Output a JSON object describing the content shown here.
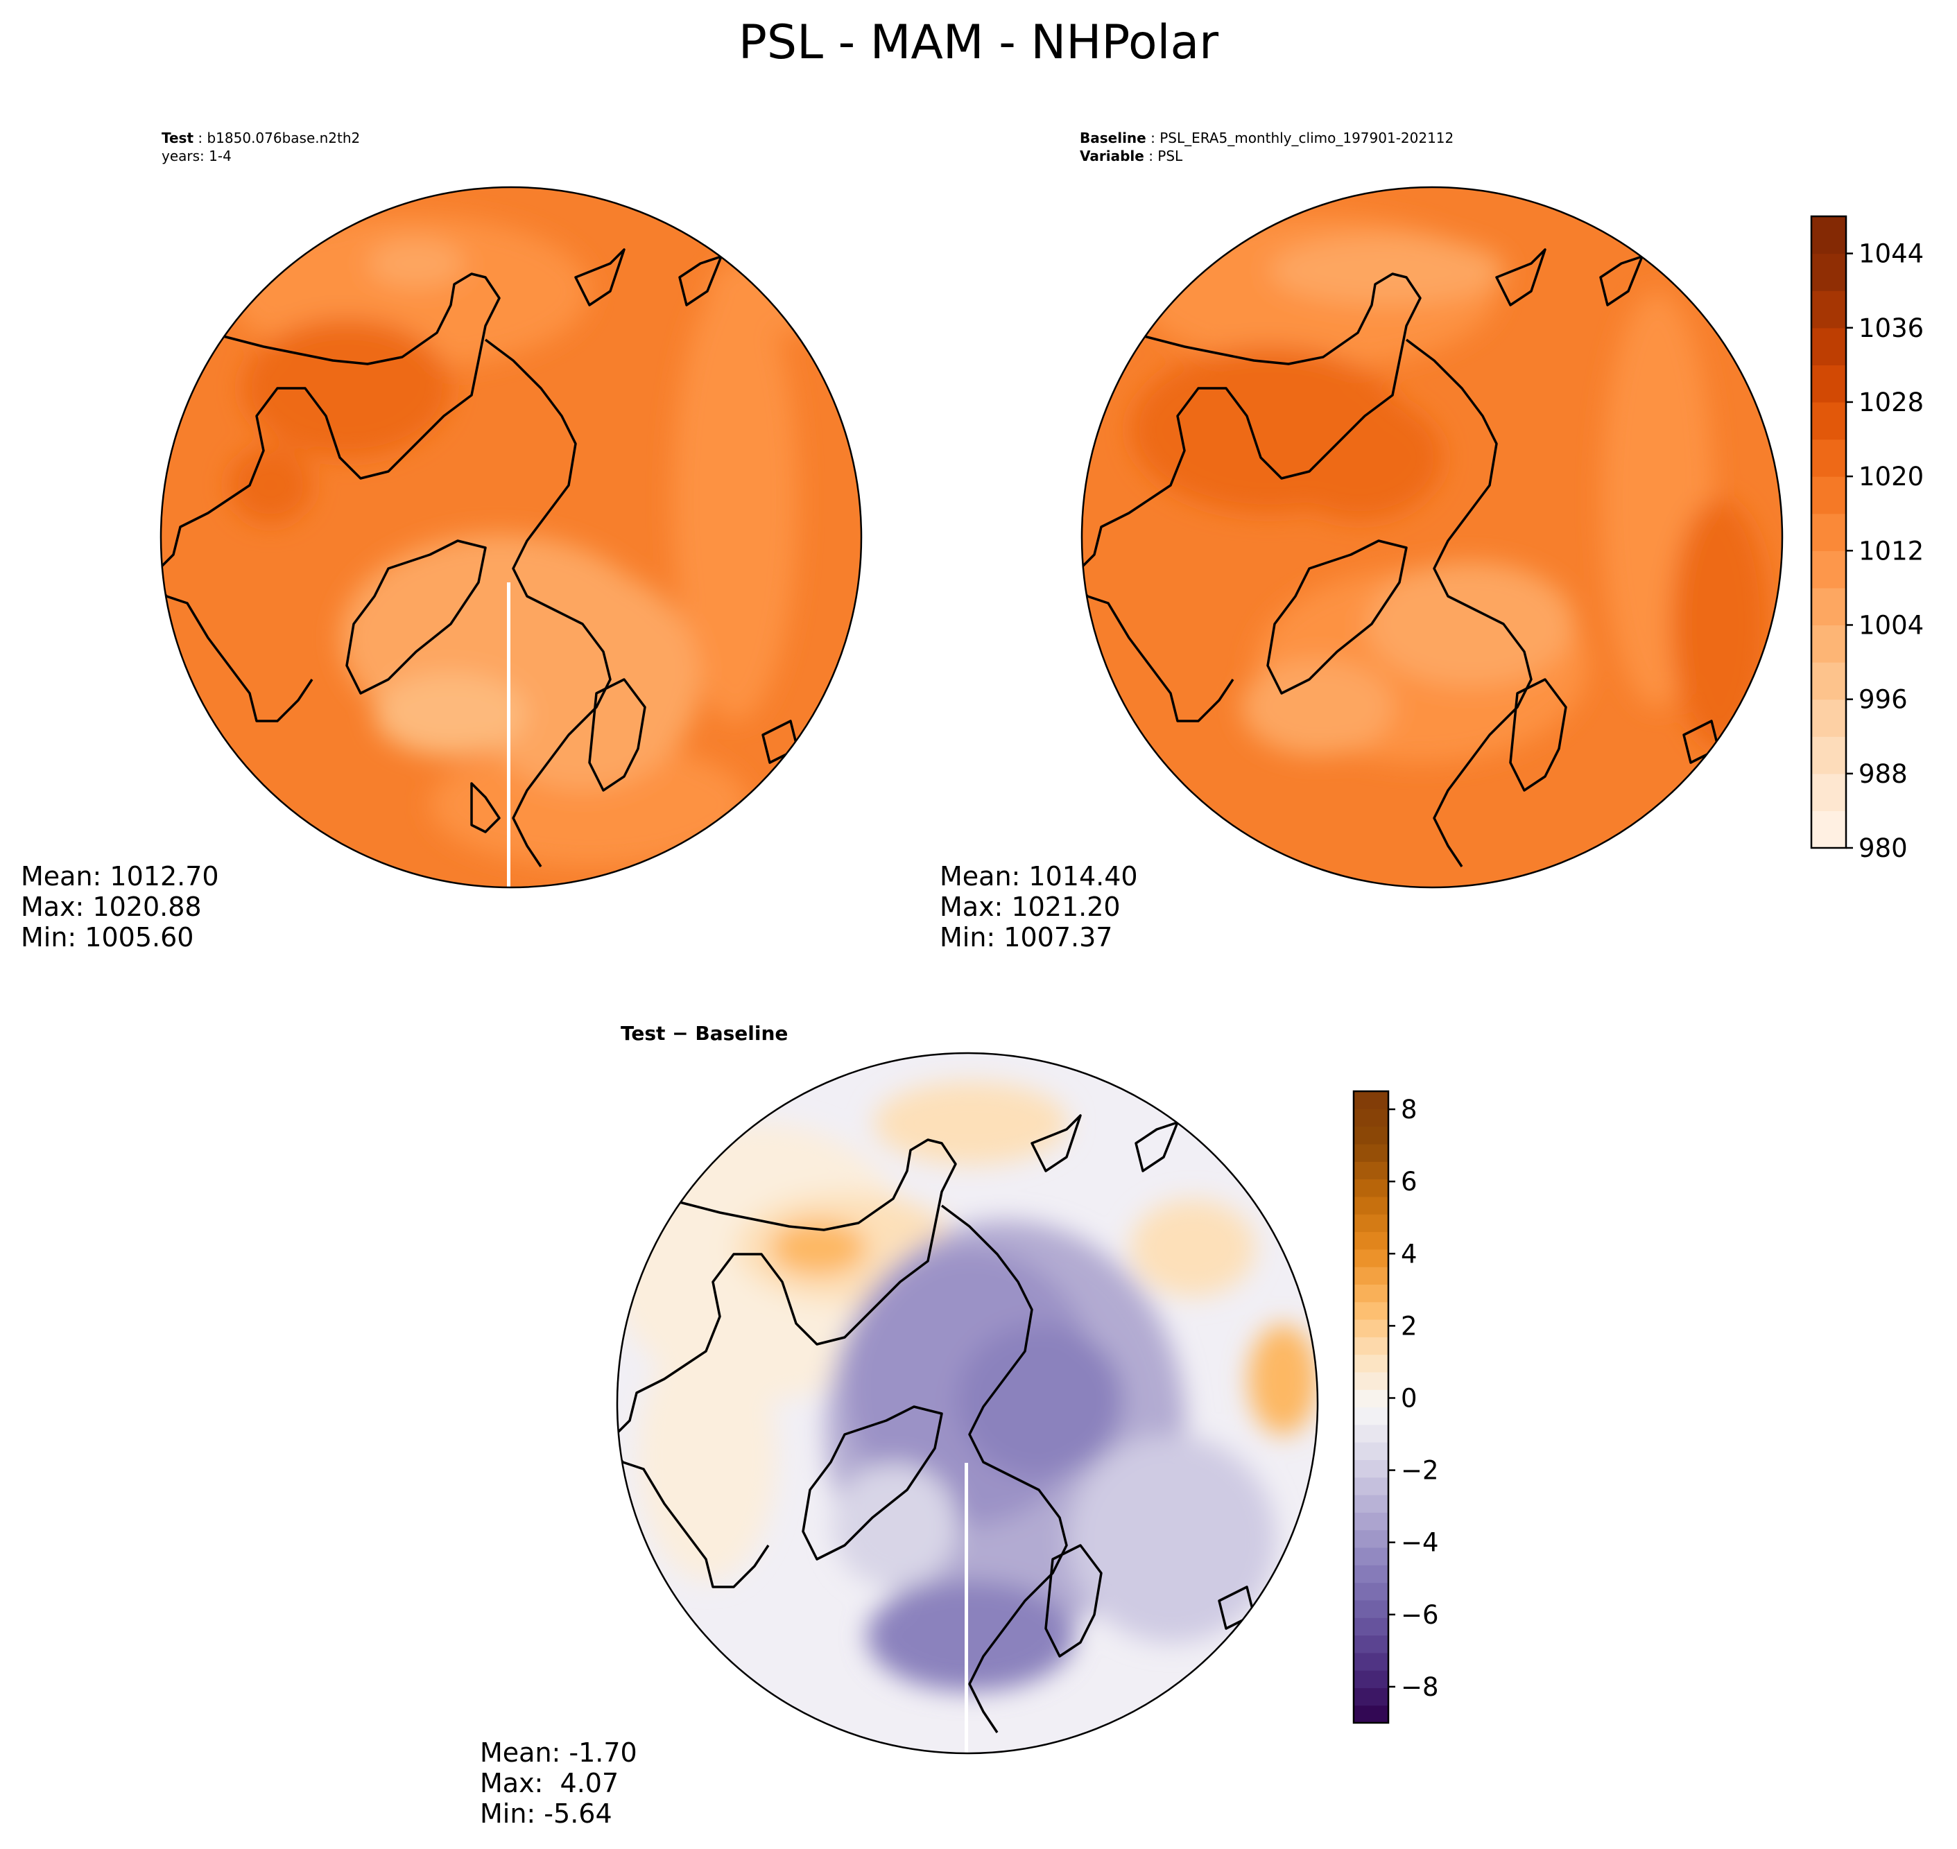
{
  "figure": {
    "title": "PSL - MAM - NHPolar"
  },
  "panels": {
    "test": {
      "label_key": "Test",
      "label_value": "b1850.076base.n2th2",
      "label_line2": "years: 1-4",
      "mean_text": "Mean: 1012.70",
      "max_text": "Max: 1020.88",
      "min_text": "Min: 1005.60"
    },
    "baseline": {
      "label_key": "Baseline",
      "label_value": "PSL_ERA5_monthly_climo_197901-202112",
      "label_key2": "Variable",
      "label_value2": "PSL",
      "mean_text": "Mean: 1014.40",
      "max_text": "Max: 1021.20",
      "min_text": "Min: 1007.37"
    },
    "difference": {
      "title": "Test − Baseline",
      "mean_text": "Mean: -1.70",
      "max_text": "Max:  4.07",
      "min_text": "Min: -5.64"
    }
  },
  "chart_data": [
    {
      "type": "heatmap",
      "projection": "north-polar-stereographic",
      "title": "Test : b1850.076base.n2th2",
      "subtitle": "years: 1-4",
      "stats": {
        "mean": 1012.7,
        "max": 1020.88,
        "min": 1005.6
      },
      "colormap": "Oranges",
      "shared_colorbar": true
    },
    {
      "type": "heatmap",
      "projection": "north-polar-stereographic",
      "title": "Baseline : PSL_ERA5_monthly_climo_197901-202112",
      "subtitle": "Variable : PSL",
      "stats": {
        "mean": 1014.4,
        "max": 1021.2,
        "min": 1007.37
      },
      "colormap": "Oranges",
      "colorbar": {
        "vmin": 980,
        "vmax": 1048,
        "step": 4,
        "ticks": [
          980,
          988,
          996,
          1004,
          1012,
          1020,
          1028,
          1036,
          1044
        ]
      }
    },
    {
      "type": "heatmap",
      "projection": "north-polar-stereographic",
      "title": "Test − Baseline",
      "stats": {
        "mean": -1.7,
        "max": 4.07,
        "min": -5.64
      },
      "colormap": "PuOr_r",
      "colorbar": {
        "vmin": -9,
        "vmax": 8.5,
        "ticks": [
          -8,
          -6,
          -4,
          -2,
          0,
          2,
          4,
          6,
          8
        ],
        "tick_labels": [
          "−8",
          "−6",
          "−4",
          "−2",
          "0",
          "2",
          "4",
          "6",
          "8"
        ]
      }
    }
  ],
  "colors": {
    "oranges": [
      "#fff5eb",
      "#fee9d4",
      "#fddbb8",
      "#fdcb9a",
      "#fdb97b",
      "#fda660",
      "#fd9243",
      "#f77f2c",
      "#ee6a17",
      "#df5307",
      "#c84102",
      "#a93703",
      "#8c2d04",
      "#7f2704"
    ],
    "diverging": [
      "#2d004b",
      "#4b2d7e",
      "#6b5aa3",
      "#8b82bd",
      "#b2abd2",
      "#d8d5e7",
      "#f7f7f7",
      "#fde0b9",
      "#fdb863",
      "#e88a1f",
      "#c06b0b",
      "#8e4906",
      "#7f3b08"
    ],
    "coast": "#000000"
  }
}
